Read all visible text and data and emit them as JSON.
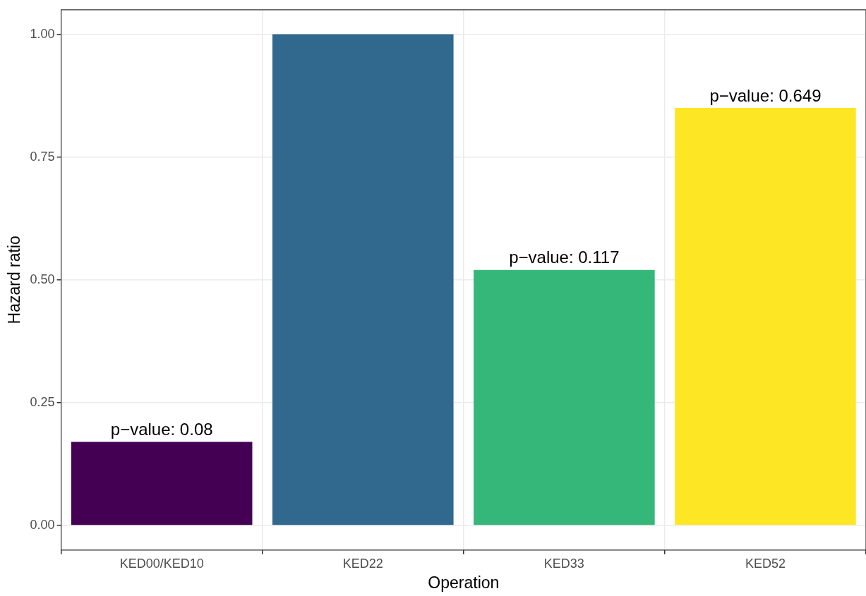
{
  "chart_data": {
    "type": "bar",
    "xlabel": "Operation",
    "ylabel": "Hazard ratio",
    "categories": [
      "KED00/KED10",
      "KED22",
      "KED33",
      "KED52"
    ],
    "values": [
      0.17,
      1.0,
      0.52,
      0.85
    ],
    "colors": [
      "#440154",
      "#31688e",
      "#35b779",
      "#fde725"
    ],
    "annotations": [
      {
        "text": "p−value: 0.08",
        "x": "KED00/KED10",
        "y": 0.17
      },
      {
        "text": "p−value: 0.117",
        "x": "KED33",
        "y": 0.52
      },
      {
        "text": "p−value: 0.649",
        "x": "KED52",
        "y": 0.85
      }
    ],
    "ylim": [
      -0.05,
      1.05
    ],
    "yticks": [
      {
        "value": 0,
        "label": "0.00"
      },
      {
        "value": 0.25,
        "label": "0.25"
      },
      {
        "value": 0.5,
        "label": "0.50"
      },
      {
        "value": 0.75,
        "label": "0.75"
      },
      {
        "value": 1,
        "label": "1.00"
      }
    ],
    "grid": true
  }
}
